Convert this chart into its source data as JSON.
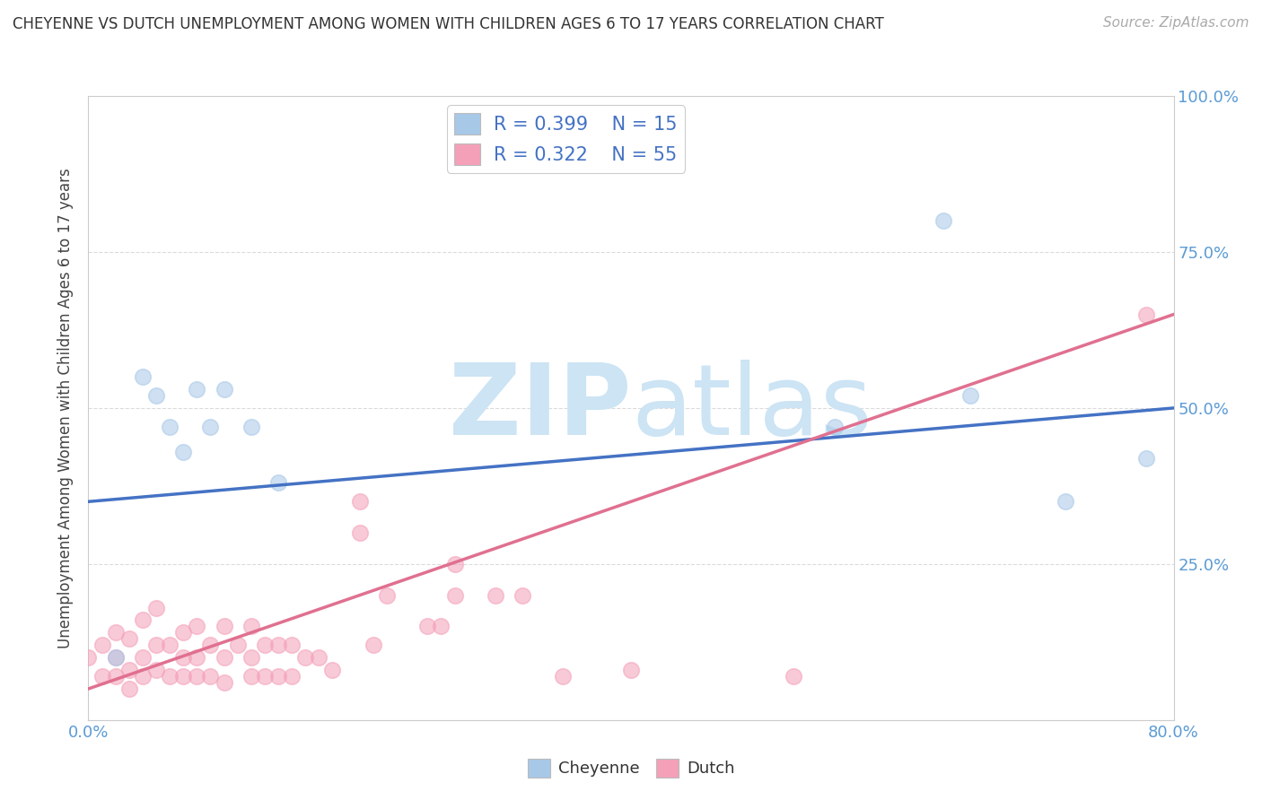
{
  "title": "CHEYENNE VS DUTCH UNEMPLOYMENT AMONG WOMEN WITH CHILDREN AGES 6 TO 17 YEARS CORRELATION CHART",
  "source": "Source: ZipAtlas.com",
  "ylabel": "Unemployment Among Women with Children Ages 6 to 17 years",
  "xlim": [
    0.0,
    0.8
  ],
  "ylim": [
    0.0,
    1.0
  ],
  "xticks": [
    0.0,
    0.1,
    0.2,
    0.3,
    0.4,
    0.5,
    0.6,
    0.7,
    0.8
  ],
  "xticklabels": [
    "0.0%",
    "",
    "",
    "",
    "",
    "",
    "",
    "",
    "80.0%"
  ],
  "yticks": [
    0.0,
    0.25,
    0.5,
    0.75,
    1.0
  ],
  "yticklabels_right": [
    "",
    "25.0%",
    "50.0%",
    "75.0%",
    "100.0%"
  ],
  "cheyenne_color": "#a8c8e8",
  "dutch_color": "#f4a0b8",
  "cheyenne_line_color": "#4472c4",
  "dutch_line_color": "#e07090",
  "cheyenne_R": 0.399,
  "cheyenne_N": 15,
  "dutch_R": 0.322,
  "dutch_N": 55,
  "watermark_zip": "ZIP",
  "watermark_atlas": "atlas",
  "watermark_color": "#cce4f4",
  "cheyenne_x": [
    0.02,
    0.04,
    0.05,
    0.06,
    0.07,
    0.08,
    0.09,
    0.1,
    0.12,
    0.14,
    0.55,
    0.63,
    0.65,
    0.72,
    0.78
  ],
  "cheyenne_y": [
    0.1,
    0.55,
    0.52,
    0.47,
    0.43,
    0.53,
    0.47,
    0.53,
    0.47,
    0.38,
    0.47,
    0.8,
    0.52,
    0.35,
    0.42
  ],
  "dutch_x": [
    0.0,
    0.01,
    0.01,
    0.02,
    0.02,
    0.02,
    0.03,
    0.03,
    0.03,
    0.04,
    0.04,
    0.04,
    0.05,
    0.05,
    0.05,
    0.06,
    0.06,
    0.07,
    0.07,
    0.07,
    0.08,
    0.08,
    0.08,
    0.09,
    0.09,
    0.1,
    0.1,
    0.1,
    0.11,
    0.12,
    0.12,
    0.12,
    0.13,
    0.13,
    0.14,
    0.14,
    0.15,
    0.15,
    0.16,
    0.17,
    0.18,
    0.2,
    0.2,
    0.21,
    0.22,
    0.25,
    0.26,
    0.27,
    0.27,
    0.3,
    0.32,
    0.35,
    0.4,
    0.52,
    0.78
  ],
  "dutch_y": [
    0.1,
    0.07,
    0.12,
    0.07,
    0.1,
    0.14,
    0.05,
    0.08,
    0.13,
    0.07,
    0.1,
    0.16,
    0.08,
    0.12,
    0.18,
    0.07,
    0.12,
    0.07,
    0.1,
    0.14,
    0.07,
    0.1,
    0.15,
    0.07,
    0.12,
    0.06,
    0.1,
    0.15,
    0.12,
    0.07,
    0.1,
    0.15,
    0.07,
    0.12,
    0.07,
    0.12,
    0.07,
    0.12,
    0.1,
    0.1,
    0.08,
    0.3,
    0.35,
    0.12,
    0.2,
    0.15,
    0.15,
    0.2,
    0.25,
    0.2,
    0.2,
    0.07,
    0.08,
    0.07,
    0.65
  ],
  "cheyenne_line_x0": 0.0,
  "cheyenne_line_y0": 0.35,
  "cheyenne_line_x1": 0.8,
  "cheyenne_line_y1": 0.5,
  "dutch_line_x0": 0.0,
  "dutch_line_y0": 0.05,
  "dutch_line_x1": 0.8,
  "dutch_line_y1": 0.65,
  "background_color": "#ffffff",
  "grid_color": "#cccccc"
}
